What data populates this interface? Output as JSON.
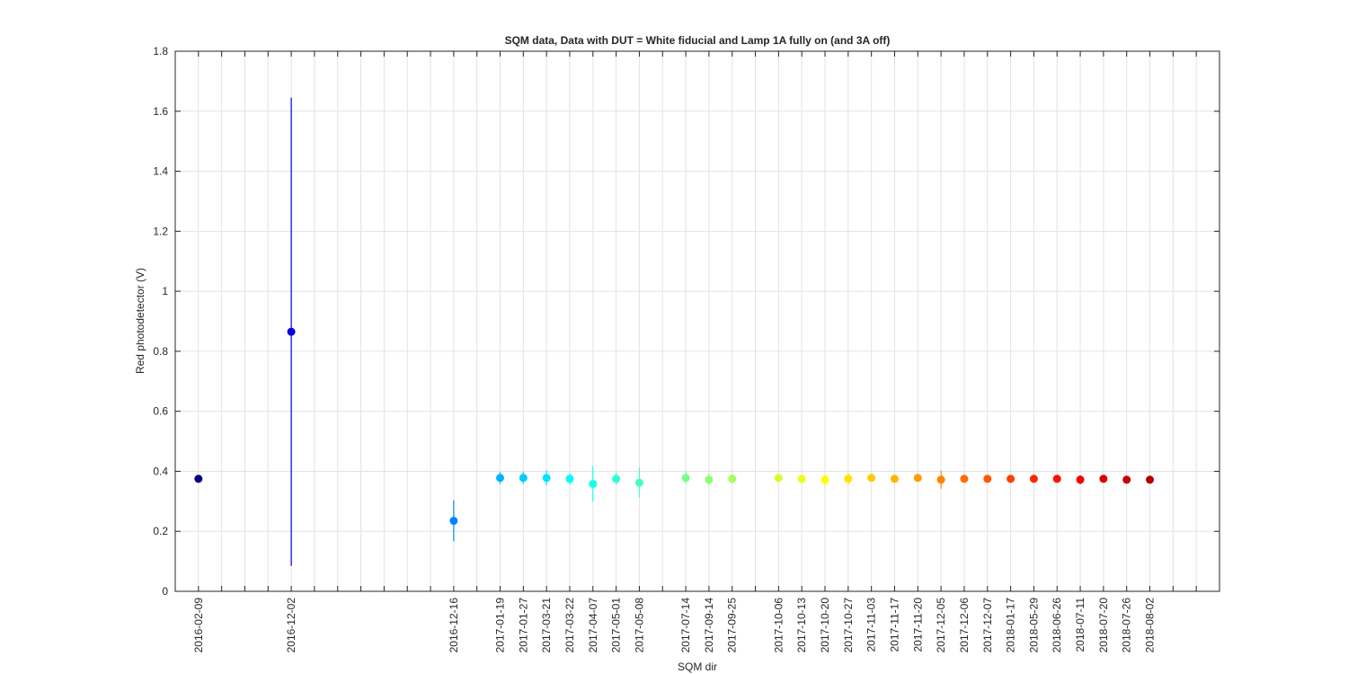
{
  "chart_data": {
    "type": "errorbar",
    "title": "SQM data, Data with DUT = White fiducial and Lamp 1A fully on (and 3A off)",
    "x_label": "SQM dir",
    "y_label": "Red photodetector (V)",
    "categories": [
      "2016-02-09",
      null,
      null,
      null,
      "2016-12-02",
      null,
      null,
      null,
      null,
      null,
      null,
      "2016-12-16",
      null,
      "2017-01-19",
      "2017-01-27",
      "2017-03-21",
      "2017-03-22",
      "2017-04-07",
      "2017-05-01",
      "2017-05-08",
      null,
      "2017-07-14",
      "2017-09-14",
      "2017-09-25",
      null,
      "2017-10-06",
      "2017-10-13",
      "2017-10-20",
      "2017-10-27",
      "2017-11-03",
      "2017-11-17",
      "2017-11-20",
      "2017-12-05",
      "2017-12-06",
      "2017-12-07",
      "2018-01-17",
      "2018-05-29",
      "2018-06-26",
      "2018-07-11",
      "2018-07-20",
      "2018-07-26",
      "2018-08-02",
      null,
      null
    ],
    "values": [
      0.375,
      null,
      null,
      null,
      0.865,
      null,
      null,
      null,
      null,
      null,
      null,
      0.235,
      null,
      0.378,
      0.378,
      0.378,
      0.375,
      0.358,
      0.375,
      0.362,
      null,
      0.378,
      0.372,
      0.375,
      null,
      0.378,
      0.375,
      0.372,
      0.375,
      0.378,
      0.375,
      0.378,
      0.372,
      0.375,
      0.375,
      0.375,
      0.375,
      0.375,
      0.372,
      0.375,
      0.372,
      0.372,
      null,
      null
    ],
    "errors": [
      0.005,
      null,
      null,
      null,
      0.78,
      null,
      null,
      null,
      null,
      null,
      null,
      0.068,
      null,
      0.02,
      0.02,
      0.025,
      0.02,
      0.06,
      0.02,
      0.05,
      null,
      0.02,
      0.02,
      0.015,
      null,
      0.01,
      0.015,
      0.02,
      0.02,
      0.01,
      0.01,
      0.01,
      0.03,
      0.01,
      0.01,
      0.01,
      0.01,
      0.01,
      0.015,
      0.01,
      0.01,
      0.01,
      null,
      null
    ],
    "colors": [
      "#000080",
      null,
      null,
      null,
      "#0000de",
      null,
      null,
      null,
      null,
      null,
      null,
      "#0085ff",
      null,
      "#00b5ff",
      "#00ccff",
      "#00e4ff",
      "#00fcff",
      "#15ffea",
      "#2cffd3",
      "#44ffbb",
      null,
      "#73ff8b",
      "#8bff73",
      "#a3ff5c",
      null,
      "#d3ff2c",
      "#eaff15",
      "#fffc00",
      "#ffe400",
      "#ffcc00",
      "#ffb500",
      "#ff9d00",
      "#ff8500",
      "#ff6d00",
      "#ff5600",
      "#ff3e00",
      "#ff2600",
      "#ff0f00",
      "#f60000",
      "#de0000",
      "#c70000",
      "#af0000",
      null,
      null
    ],
    "ylim": [
      0,
      1.8
    ],
    "yticks": [
      0,
      0.2,
      0.4,
      0.6,
      0.8,
      1,
      1.2,
      1.4,
      1.6,
      1.8
    ],
    "grid": true
  }
}
